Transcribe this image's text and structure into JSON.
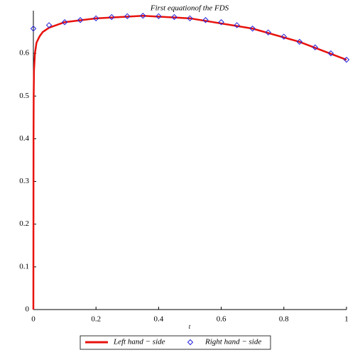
{
  "chart_data": {
    "type": "line-scatter",
    "title": "First equationof the FDS",
    "x_label": "t",
    "xlim": [
      0,
      1
    ],
    "ylim": [
      0,
      0.7
    ],
    "xticks": [
      0,
      0.2,
      0.4,
      0.6,
      0.8,
      1
    ],
    "yticks": [
      0,
      0.1,
      0.2,
      0.3,
      0.4,
      0.5,
      0.6
    ],
    "series": [
      {
        "name": "Left hand − side",
        "kind": "line",
        "color": "#e8120c",
        "x": [
          0,
          0.0005,
          0.001,
          0.002,
          0.005,
          0.01,
          0.02,
          0.03,
          0.05,
          0.1,
          0.2,
          0.35,
          0.5,
          0.7,
          0.85,
          1
        ],
        "values": [
          0,
          0.4,
          0.5,
          0.56,
          0.6,
          0.625,
          0.64,
          0.65,
          0.66,
          0.673,
          0.682,
          0.688,
          0.682,
          0.658,
          0.627,
          0.585
        ]
      },
      {
        "name": "Right hand − side",
        "kind": "scatter",
        "color": "#2222dd",
        "x": [
          0,
          0.05,
          0.1,
          0.15,
          0.2,
          0.25,
          0.3,
          0.35,
          0.4,
          0.45,
          0.5,
          0.55,
          0.6,
          0.65,
          0.7,
          0.75,
          0.8,
          0.85,
          0.9,
          0.95,
          1
        ],
        "values": [
          0.658,
          0.666,
          0.673,
          0.678,
          0.682,
          0.685,
          0.687,
          0.688,
          0.687,
          0.685,
          0.682,
          0.678,
          0.673,
          0.666,
          0.658,
          0.649,
          0.639,
          0.627,
          0.614,
          0.6,
          0.585
        ]
      }
    ]
  }
}
